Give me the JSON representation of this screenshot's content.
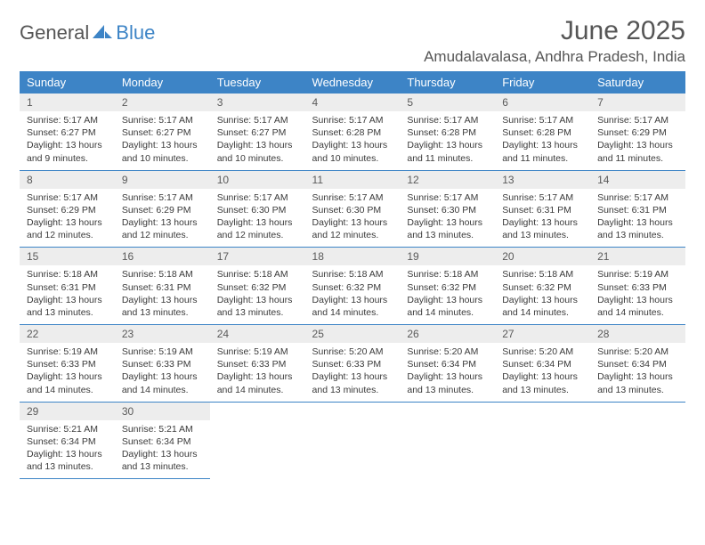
{
  "logo": {
    "part1": "General",
    "part2": "Blue"
  },
  "title": "June 2025",
  "location": "Amudalavalasa, Andhra Pradesh, India",
  "colors": {
    "header_bg": "#3d84c6",
    "header_text": "#ffffff",
    "daynum_bg": "#ededed",
    "body_text": "#3a3a3a",
    "title_text": "#565656",
    "border": "#3d84c6"
  },
  "weekdays": [
    "Sunday",
    "Monday",
    "Tuesday",
    "Wednesday",
    "Thursday",
    "Friday",
    "Saturday"
  ],
  "days": [
    {
      "n": "1",
      "sr": "5:17 AM",
      "ss": "6:27 PM",
      "dl": "13 hours and 9 minutes."
    },
    {
      "n": "2",
      "sr": "5:17 AM",
      "ss": "6:27 PM",
      "dl": "13 hours and 10 minutes."
    },
    {
      "n": "3",
      "sr": "5:17 AM",
      "ss": "6:27 PM",
      "dl": "13 hours and 10 minutes."
    },
    {
      "n": "4",
      "sr": "5:17 AM",
      "ss": "6:28 PM",
      "dl": "13 hours and 10 minutes."
    },
    {
      "n": "5",
      "sr": "5:17 AM",
      "ss": "6:28 PM",
      "dl": "13 hours and 11 minutes."
    },
    {
      "n": "6",
      "sr": "5:17 AM",
      "ss": "6:28 PM",
      "dl": "13 hours and 11 minutes."
    },
    {
      "n": "7",
      "sr": "5:17 AM",
      "ss": "6:29 PM",
      "dl": "13 hours and 11 minutes."
    },
    {
      "n": "8",
      "sr": "5:17 AM",
      "ss": "6:29 PM",
      "dl": "13 hours and 12 minutes."
    },
    {
      "n": "9",
      "sr": "5:17 AM",
      "ss": "6:29 PM",
      "dl": "13 hours and 12 minutes."
    },
    {
      "n": "10",
      "sr": "5:17 AM",
      "ss": "6:30 PM",
      "dl": "13 hours and 12 minutes."
    },
    {
      "n": "11",
      "sr": "5:17 AM",
      "ss": "6:30 PM",
      "dl": "13 hours and 12 minutes."
    },
    {
      "n": "12",
      "sr": "5:17 AM",
      "ss": "6:30 PM",
      "dl": "13 hours and 13 minutes."
    },
    {
      "n": "13",
      "sr": "5:17 AM",
      "ss": "6:31 PM",
      "dl": "13 hours and 13 minutes."
    },
    {
      "n": "14",
      "sr": "5:17 AM",
      "ss": "6:31 PM",
      "dl": "13 hours and 13 minutes."
    },
    {
      "n": "15",
      "sr": "5:18 AM",
      "ss": "6:31 PM",
      "dl": "13 hours and 13 minutes."
    },
    {
      "n": "16",
      "sr": "5:18 AM",
      "ss": "6:31 PM",
      "dl": "13 hours and 13 minutes."
    },
    {
      "n": "17",
      "sr": "5:18 AM",
      "ss": "6:32 PM",
      "dl": "13 hours and 13 minutes."
    },
    {
      "n": "18",
      "sr": "5:18 AM",
      "ss": "6:32 PM",
      "dl": "13 hours and 14 minutes."
    },
    {
      "n": "19",
      "sr": "5:18 AM",
      "ss": "6:32 PM",
      "dl": "13 hours and 14 minutes."
    },
    {
      "n": "20",
      "sr": "5:18 AM",
      "ss": "6:32 PM",
      "dl": "13 hours and 14 minutes."
    },
    {
      "n": "21",
      "sr": "5:19 AM",
      "ss": "6:33 PM",
      "dl": "13 hours and 14 minutes."
    },
    {
      "n": "22",
      "sr": "5:19 AM",
      "ss": "6:33 PM",
      "dl": "13 hours and 14 minutes."
    },
    {
      "n": "23",
      "sr": "5:19 AM",
      "ss": "6:33 PM",
      "dl": "13 hours and 14 minutes."
    },
    {
      "n": "24",
      "sr": "5:19 AM",
      "ss": "6:33 PM",
      "dl": "13 hours and 14 minutes."
    },
    {
      "n": "25",
      "sr": "5:20 AM",
      "ss": "6:33 PM",
      "dl": "13 hours and 13 minutes."
    },
    {
      "n": "26",
      "sr": "5:20 AM",
      "ss": "6:34 PM",
      "dl": "13 hours and 13 minutes."
    },
    {
      "n": "27",
      "sr": "5:20 AM",
      "ss": "6:34 PM",
      "dl": "13 hours and 13 minutes."
    },
    {
      "n": "28",
      "sr": "5:20 AM",
      "ss": "6:34 PM",
      "dl": "13 hours and 13 minutes."
    },
    {
      "n": "29",
      "sr": "5:21 AM",
      "ss": "6:34 PM",
      "dl": "13 hours and 13 minutes."
    },
    {
      "n": "30",
      "sr": "5:21 AM",
      "ss": "6:34 PM",
      "dl": "13 hours and 13 minutes."
    }
  ],
  "labels": {
    "sunrise": "Sunrise: ",
    "sunset": "Sunset: ",
    "daylight": "Daylight: "
  }
}
